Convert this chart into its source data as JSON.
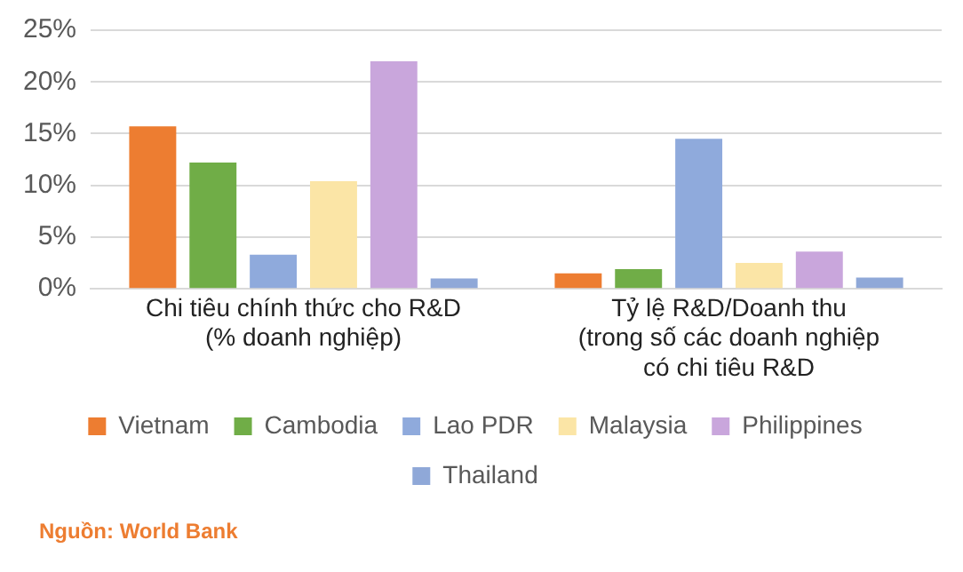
{
  "chart_data": {
    "type": "bar",
    "categories": [
      "Chi tiêu chính thức cho R&D\n(% doanh nghiệp)",
      "Tỷ lệ R&D/Doanh thu\n(trong số các doanh nghiệp\ncó chi tiêu R&D"
    ],
    "series": [
      {
        "name": "Vietnam",
        "color": "#ed7d31",
        "values": [
          15.7,
          1.5
        ]
      },
      {
        "name": "Cambodia",
        "color": "#70ad47",
        "values": [
          12.2,
          1.9
        ]
      },
      {
        "name": "Lao PDR",
        "color": "#8faadc",
        "values": [
          3.3,
          14.5
        ]
      },
      {
        "name": "Malaysia",
        "color": "#fbe5a6",
        "values": [
          10.4,
          2.5
        ]
      },
      {
        "name": "Philippines",
        "color": "#c9a6dc",
        "values": [
          22.0,
          3.6
        ]
      },
      {
        "name": "Thailand",
        "color": "#8fa8d8",
        "values": [
          1.0,
          1.1
        ]
      }
    ],
    "ylim": [
      0,
      25
    ],
    "yticks": [
      {
        "value": 0,
        "label": "0%"
      },
      {
        "value": 5,
        "label": "5%"
      },
      {
        "value": 10,
        "label": "10%"
      },
      {
        "value": 15,
        "label": "15%"
      },
      {
        "value": 20,
        "label": "20%"
      },
      {
        "value": 25,
        "label": "25%"
      }
    ],
    "grid": "y",
    "legend": "bottom",
    "annotations": [
      "Nguồn: World Bank"
    ]
  }
}
